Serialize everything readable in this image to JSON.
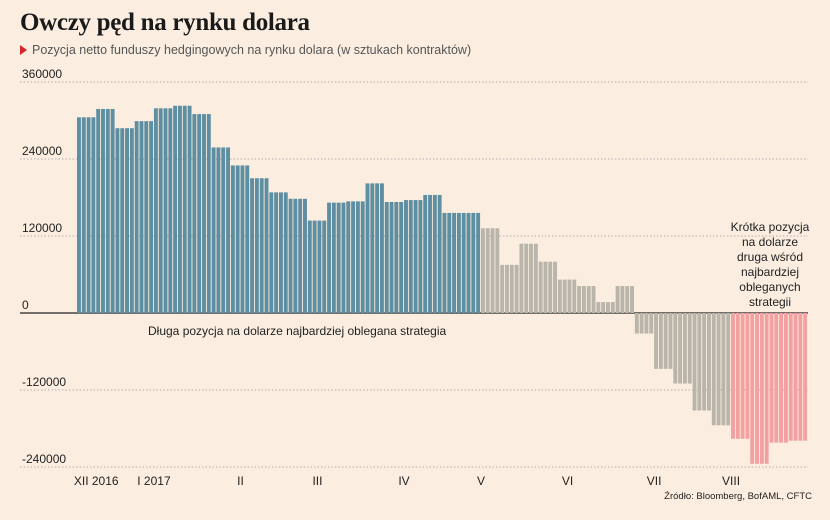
{
  "title": "Owczy pęd na rynku dolara",
  "subtitle": "Pozycja netto funduszy hedgingowych na rynku dolara (w sztukach kontraktów)",
  "source": "Źródło: Bloomberg, BofAML, CFTC",
  "colors": {
    "long": "#5e8ea1",
    "neutral": "#b9b5aa",
    "short": "#f2a0a0",
    "background": "#fbeee0",
    "marker": "#d7262b"
  },
  "chart_data": {
    "type": "bar",
    "title": "Owczy pęd na rynku dolara",
    "subtitle": "Pozycja netto funduszy hedgingowych na rynku dolara (w sztukach kontraktów)",
    "xlabel": "",
    "ylabel": "",
    "ylim": [
      -240000,
      360000
    ],
    "yticks": [
      360000,
      240000,
      120000,
      0,
      -120000,
      -240000
    ],
    "ytick_labels": [
      "360000",
      "240000",
      "120000",
      "0",
      "-120000",
      "-240000"
    ],
    "grid": true,
    "x_tick_labels": [
      "XII 2016",
      "I 2017",
      "II",
      "III",
      "IV",
      "V",
      "VI",
      "VII",
      "VIII"
    ],
    "x_tick_weeks": [
      1,
      4,
      8.5,
      12.5,
      17,
      21,
      25.5,
      30,
      34
    ],
    "series": [
      {
        "color_key": "long",
        "values": [
          305000,
          305000,
          305000,
          305000,
          318000,
          318000,
          318000,
          318000,
          288000,
          288000,
          288000,
          288000,
          299000,
          299000,
          299000,
          299000,
          319000,
          319000,
          319000,
          319000,
          323000,
          323000,
          323000,
          323000,
          310000,
          310000,
          310000,
          310000,
          258000,
          258000,
          258000,
          258000,
          230000,
          230000,
          230000,
          230000,
          210000,
          210000,
          210000,
          210000,
          188000,
          188000,
          188000,
          188000,
          178000,
          178000,
          178000,
          178000,
          144000,
          144000,
          144000,
          144000,
          172000,
          172000,
          172000,
          172000,
          174000,
          174000,
          174000,
          174000,
          202000,
          202000,
          202000,
          202000,
          173000,
          173000,
          173000,
          173000,
          176000,
          176000,
          176000,
          176000,
          184000,
          184000,
          184000,
          184000,
          156000,
          156000,
          156000,
          156000,
          156000,
          156000,
          156000,
          156000
        ]
      },
      {
        "color_key": "neutral",
        "values": [
          132000,
          132000,
          132000,
          132000,
          75000,
          75000,
          75000,
          75000,
          108000,
          108000,
          108000,
          108000,
          80000,
          80000,
          80000,
          80000,
          52000,
          52000,
          52000,
          52000,
          42000,
          42000,
          42000,
          42000,
          17000,
          17000,
          17000,
          17000,
          42000,
          42000,
          42000,
          42000,
          -32000,
          -32000,
          -32000,
          -32000,
          -87000,
          -87000,
          -87000,
          -87000,
          -110000,
          -110000,
          -110000,
          -110000,
          -152000,
          -152000,
          -152000,
          -152000,
          -175000,
          -175000,
          -175000,
          -175000
        ]
      },
      {
        "color_key": "short",
        "values": [
          -196000,
          -196000,
          -196000,
          -196000,
          -235000,
          -235000,
          -235000,
          -235000,
          -202000,
          -202000,
          -202000,
          -202000,
          -199000,
          -199000,
          -199000,
          -199000
        ]
      }
    ],
    "annotations": [
      {
        "text": "Długa pozycja na dolarze najbardziej oblegana strategia"
      },
      {
        "lines": [
          "Krótka pozycja",
          "na dolarze",
          "druga wśród",
          "najbardziej",
          "obleganych",
          "strategii"
        ]
      }
    ]
  }
}
